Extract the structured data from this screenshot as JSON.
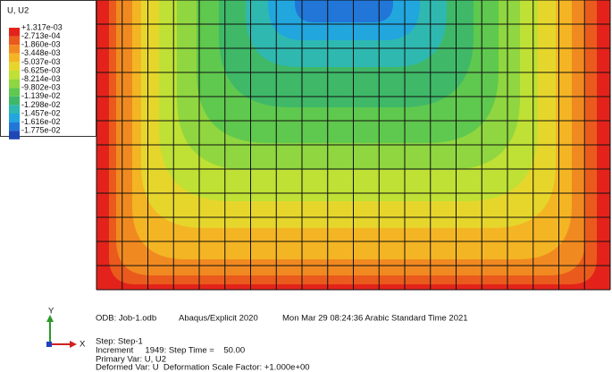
{
  "legend": {
    "title": "U, U2",
    "labels": [
      "+1.317e-03",
      "-2.713e-04",
      "-1.860e-03",
      "-3.448e-03",
      "-5.037e-03",
      "-6.625e-03",
      "-8.214e-03",
      "-9.802e-03",
      "-1.139e-02",
      "-1.298e-02",
      "-1.457e-02",
      "-1.616e-02",
      "-1.775e-02"
    ],
    "colors": [
      "#e3231b",
      "#ea5a1d",
      "#f08a20",
      "#f4b524",
      "#e6d62c",
      "#bfe034",
      "#8fd640",
      "#5fc84e",
      "#3fb868",
      "#2fb8b0",
      "#22a6de",
      "#2276d8",
      "#1f46b4"
    ]
  },
  "info": {
    "odb": "ODB: Job-1.odb",
    "solver": "Abaqus/Explicit 2020",
    "date": "Mon Mar 29 08:24:36 Arabic Standard Time 2021",
    "step": "Step: Step-1",
    "increment": "Increment     1949: Step Time =    50.00",
    "primary": "Primary Var: U, U2",
    "deformed": "Deformed Var: U  Deformation Scale Factor: +1.000e+00"
  },
  "triad": {
    "y": "Y",
    "x": "X"
  }
}
